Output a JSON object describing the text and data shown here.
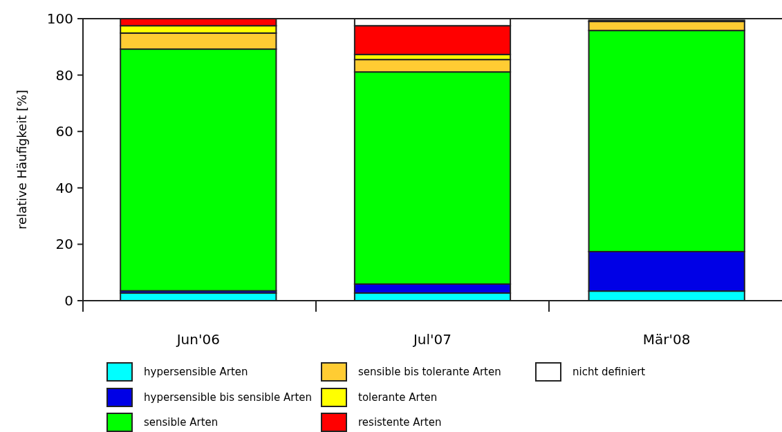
{
  "chart_data": {
    "type": "bar",
    "stacked": true,
    "ylabel": "relative Häufigkeit [%]",
    "categories": [
      "Jun'06",
      "Jul'07",
      "Mär'08"
    ],
    "ylim": [
      0,
      100
    ],
    "yticks": [
      0,
      20,
      40,
      60,
      80,
      100
    ],
    "grid": false,
    "legend": "bottom",
    "series": [
      {
        "name": "hypersensible Arten",
        "color": "#00ffff",
        "values": [
          2.7,
          2.7,
          3.4
        ]
      },
      {
        "name": "hypersensible bis sensible Arten",
        "color": "#0000e6",
        "values": [
          0.8,
          3.2,
          14.0
        ]
      },
      {
        "name": "sensible Arten",
        "color": "#00ff00",
        "values": [
          85.7,
          75.2,
          78.4
        ]
      },
      {
        "name": "sensible bis tolerante Arten",
        "color": "#ffcc33",
        "values": [
          5.7,
          4.4,
          3.2
        ]
      },
      {
        "name": "tolerante Arten",
        "color": "#ffff00",
        "values": [
          2.6,
          1.8,
          0.4
        ]
      },
      {
        "name": "resistente Arten",
        "color": "#ff0000",
        "values": [
          2.5,
          10.2,
          null
        ]
      },
      {
        "name": "nicht definiert",
        "color": "#ffffff",
        "values": [
          0,
          2.5,
          null
        ]
      }
    ]
  }
}
